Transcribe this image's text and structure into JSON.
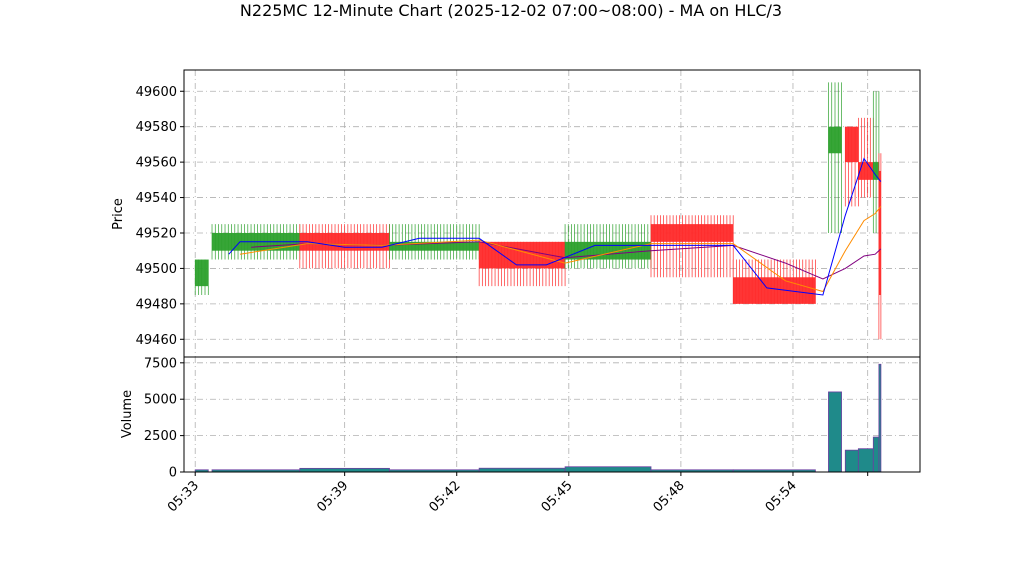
{
  "chart_data": {
    "type": "candlestick",
    "title": "N225MC 12-Minute Chart (2025-12-02 07:00~08:00) - MA on HLC/3",
    "price_panel": {
      "ylabel": "Price",
      "ylim": [
        49450,
        49612
      ],
      "yticks": [
        49460,
        49480,
        49500,
        49520,
        49540,
        49560,
        49580,
        49600
      ]
    },
    "volume_panel": {
      "ylabel": "Volume",
      "ylim": [
        0,
        7900
      ],
      "yticks": [
        0,
        2500,
        5000,
        7500
      ],
      "ytick_labels": [
        "0",
        "2500",
        "5000",
        "7500"
      ]
    },
    "x_ticks": [
      "05:33",
      "05:39",
      "05:42",
      "05:45",
      "05:48",
      "05:54"
    ],
    "grid": true,
    "colors": {
      "up": "#2ca02c",
      "down": "#ff2a2a",
      "ma_fast": "#0000ff",
      "ma_mid": "#ff8c00",
      "ma_slow": "#800080",
      "volume_fill": "#1f8a8a",
      "volume_edge": "#6b3fa0"
    },
    "groups": [
      {
        "x_start": 0.0,
        "x_end": 0.35,
        "open": 49490,
        "high": 49505,
        "low": 49485,
        "close": 49505,
        "volume": 150
      },
      {
        "x_start": 0.45,
        "x_end": 2.8,
        "open": 49510,
        "high": 49525,
        "low": 49505,
        "close": 49520,
        "volume": 150
      },
      {
        "x_start": 2.8,
        "x_end": 5.2,
        "open": 49520,
        "high": 49525,
        "low": 49500,
        "close": 49510,
        "volume": 250
      },
      {
        "x_start": 5.2,
        "x_end": 7.6,
        "open": 49510,
        "high": 49525,
        "low": 49505,
        "close": 49515,
        "volume": 150
      },
      {
        "x_start": 7.6,
        "x_end": 9.9,
        "open": 49515,
        "high": 49515,
        "low": 49490,
        "close": 49500,
        "volume": 260
      },
      {
        "x_start": 9.9,
        "x_end": 12.2,
        "open": 49505,
        "high": 49525,
        "low": 49500,
        "close": 49515,
        "volume": 360
      },
      {
        "x_start": 12.2,
        "x_end": 14.4,
        "open": 49525,
        "high": 49530,
        "low": 49495,
        "close": 49515,
        "volume": 150
      },
      {
        "x_start": 14.4,
        "x_end": 16.6,
        "open": 49495,
        "high": 49505,
        "low": 49480,
        "close": 49480,
        "volume": 150
      },
      {
        "x_start": 16.95,
        "x_end": 17.3,
        "open": 49565,
        "high": 49605,
        "low": 49520,
        "close": 49580,
        "volume": 5500
      },
      {
        "x_start": 17.4,
        "x_end": 17.75,
        "open": 49580,
        "high": 49580,
        "low": 49535,
        "close": 49560,
        "volume": 1500
      },
      {
        "x_start": 17.75,
        "x_end": 18.15,
        "open": 49560,
        "high": 49585,
        "low": 49540,
        "close": 49550,
        "volume": 1600
      },
      {
        "x_start": 18.15,
        "x_end": 18.3,
        "open": 49550,
        "high": 49600,
        "low": 49520,
        "close": 49560,
        "volume": 2400
      },
      {
        "x_start": 18.3,
        "x_end": 18.35,
        "open": 49555,
        "high": 49565,
        "low": 49460,
        "close": 49485,
        "volume": 7400
      }
    ],
    "ma_fast": [
      [
        0.9,
        49508
      ],
      [
        1.2,
        49515
      ],
      [
        3.0,
        49515
      ],
      [
        4.0,
        49512
      ],
      [
        5.0,
        49512
      ],
      [
        6.0,
        49517
      ],
      [
        7.6,
        49517
      ],
      [
        8.6,
        49502
      ],
      [
        9.4,
        49502
      ],
      [
        10.7,
        49513
      ],
      [
        11.5,
        49513
      ],
      [
        12.8,
        49513
      ],
      [
        14.4,
        49513
      ],
      [
        15.3,
        49489
      ],
      [
        16.8,
        49485
      ],
      [
        17.4,
        49530
      ],
      [
        17.9,
        49562
      ],
      [
        18.2,
        49553
      ],
      [
        18.35,
        49549
      ]
    ],
    "ma_mid": [
      [
        1.2,
        49508
      ],
      [
        3.0,
        49514
      ],
      [
        5.0,
        49513
      ],
      [
        7.6,
        49516
      ],
      [
        9.9,
        49503
      ],
      [
        12.2,
        49514
      ],
      [
        14.4,
        49514
      ],
      [
        15.8,
        49493
      ],
      [
        16.8,
        49487
      ],
      [
        17.4,
        49510
      ],
      [
        17.9,
        49527
      ],
      [
        18.2,
        49531
      ],
      [
        18.35,
        49535
      ]
    ],
    "ma_slow": [
      [
        1.5,
        49512
      ],
      [
        3.0,
        49514
      ],
      [
        5.0,
        49513
      ],
      [
        7.6,
        49515
      ],
      [
        9.9,
        49506
      ],
      [
        12.2,
        49510
      ],
      [
        14.4,
        49513
      ],
      [
        15.8,
        49503
      ],
      [
        16.8,
        49494
      ],
      [
        17.4,
        49500
      ],
      [
        17.9,
        49507
      ],
      [
        18.2,
        49508
      ],
      [
        18.35,
        49511
      ]
    ]
  }
}
